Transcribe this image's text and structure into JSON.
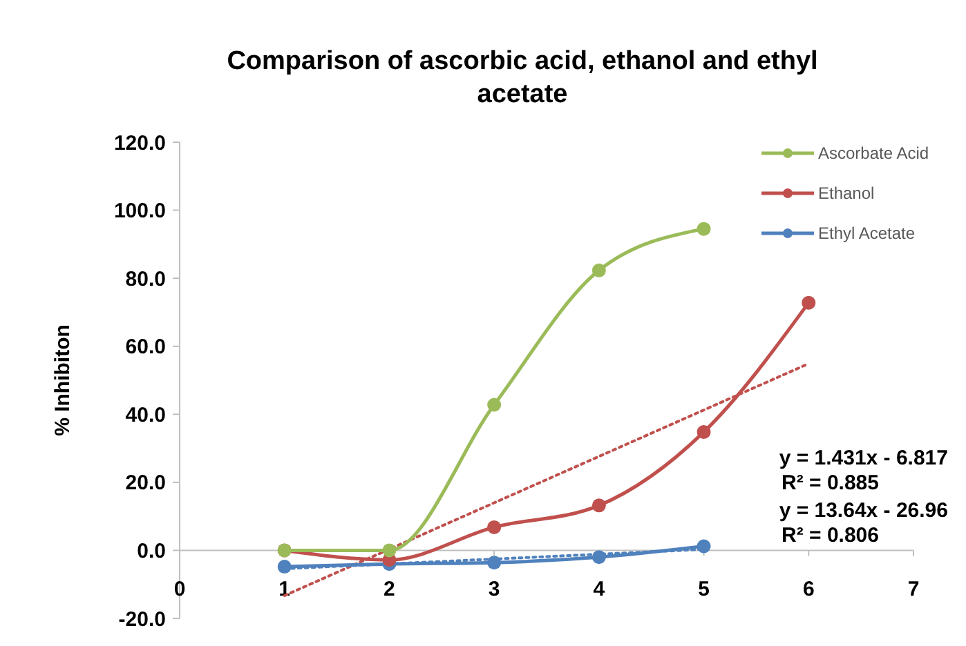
{
  "chart_data": {
    "type": "line",
    "title": "Comparison of ascorbic acid, ethanol and ethyl acetate",
    "ylabel": "% Inhibiton",
    "x": [
      1,
      2,
      3,
      4,
      5
    ],
    "series": [
      {
        "name": "Ascorbate Acid",
        "color": "#9bbb59",
        "values": [
          0,
          0,
          42.8,
          82.3,
          94.5
        ]
      },
      {
        "name": "Ethanol",
        "color": "#c0504d",
        "x": [
          1,
          2,
          3,
          4,
          5,
          6
        ],
        "values": [
          0,
          -2.8,
          6.8,
          13.2,
          34.8,
          72.8
        ]
      },
      {
        "name": "Ethyl Acetate",
        "color": "#4f81bd",
        "values": [
          -4.8,
          -4,
          -3.6,
          -2,
          1.2
        ]
      },
      {
        "type": "line",
        "color": "#4f81bd",
        "x": [
          1,
          5
        ],
        "values": [
          -5.4,
          0.3
        ],
        "line_style": "dotted",
        "marker": "none"
      },
      {
        "type": "line",
        "color": "#c0504d",
        "x": [
          1,
          6
        ],
        "values": [
          -13.3,
          54.9
        ],
        "line_style": "dotted",
        "marker": "none"
      }
    ],
    "xlim": [
      0,
      7
    ],
    "xticks": [
      0,
      1,
      2,
      3,
      4,
      5,
      6,
      7
    ],
    "ylim": [
      -20,
      120
    ],
    "yticks": [
      {
        "value": -20,
        "label": "-20.0"
      },
      {
        "value": 0,
        "label": "0.0"
      },
      {
        "value": 20,
        "label": "20.0"
      },
      {
        "value": 40,
        "label": "40.0"
      },
      {
        "value": 60,
        "label": "60.0"
      },
      {
        "value": 80,
        "label": "80.0"
      },
      {
        "value": 100,
        "label": "100.0"
      },
      {
        "value": 120,
        "label": "120.0"
      }
    ],
    "marker": "circle",
    "line_style": "solid",
    "grid": false,
    "legend": "top right",
    "annotations": [
      "y = 1.431x - 6.817",
      "R² = 0.885",
      "y = 13.64x - 26.96",
      "R² = 0.806"
    ]
  }
}
